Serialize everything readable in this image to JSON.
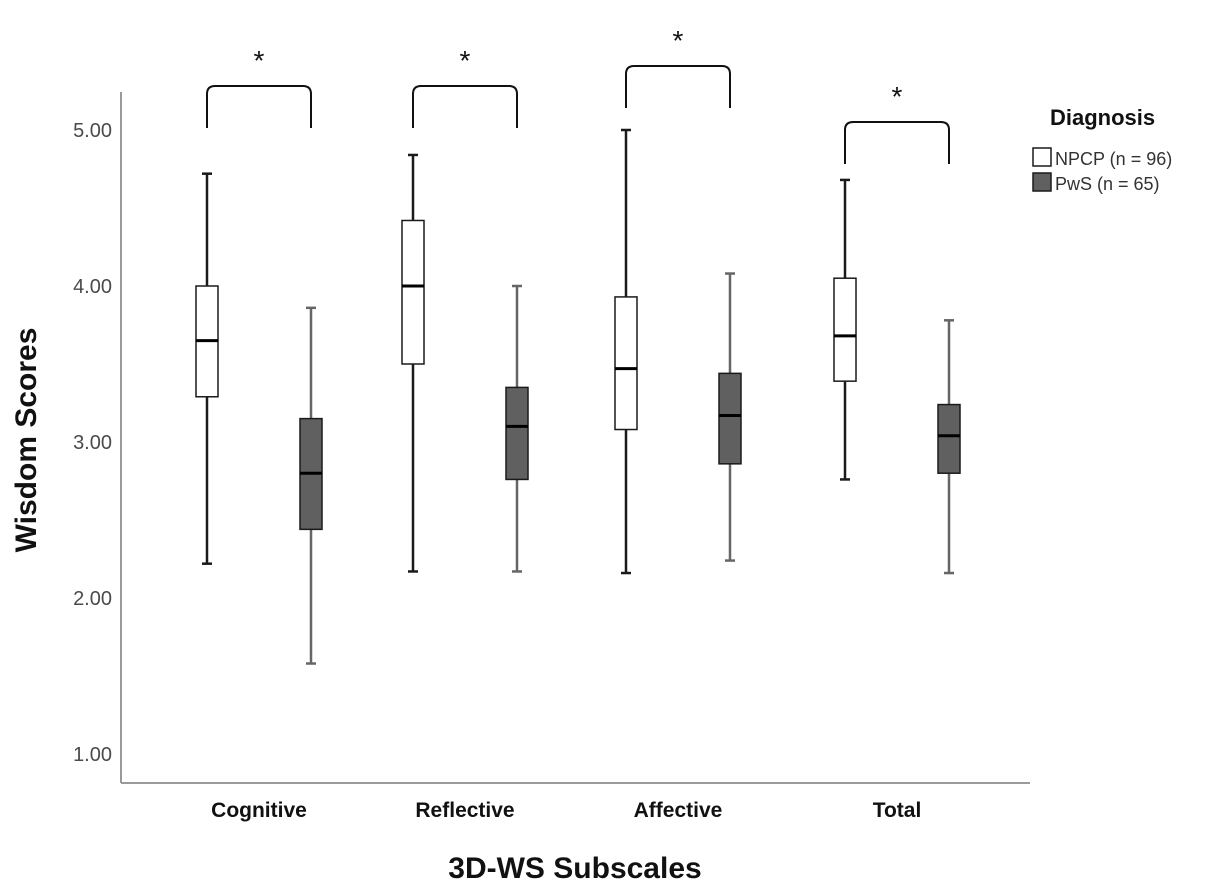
{
  "chart_data": {
    "type": "boxplot",
    "xlabel": "3D-WS Subscales",
    "ylabel": "Wisdom Scores",
    "ylim": [
      0.77,
      5.2
    ],
    "yticks": [
      "1.00",
      "2.00",
      "3.00",
      "4.00",
      "5.00"
    ],
    "categories": [
      "Cognitive",
      "Reflective",
      "Affective",
      "Total"
    ],
    "legend": {
      "title": "Diagnosis",
      "placement": "top-right"
    },
    "series": [
      {
        "name": "NPCP (n = 96)",
        "fill": "#ffffff",
        "stroke": "#1a1a1a",
        "boxes": [
          {
            "min": 2.22,
            "q1": 3.29,
            "median": 3.65,
            "q3": 4.0,
            "max": 4.72
          },
          {
            "min": 2.17,
            "q1": 3.5,
            "median": 4.0,
            "q3": 4.42,
            "max": 4.84
          },
          {
            "min": 2.16,
            "q1": 3.08,
            "median": 3.47,
            "q3": 3.93,
            "max": 5.0
          },
          {
            "min": 2.76,
            "q1": 3.39,
            "median": 3.68,
            "q3": 4.05,
            "max": 4.68
          }
        ]
      },
      {
        "name": "PwS (n = 65)",
        "fill": "#606060",
        "stroke": "#1a1a1a",
        "boxes": [
          {
            "min": 1.58,
            "q1": 2.44,
            "median": 2.8,
            "q3": 3.15,
            "max": 3.86
          },
          {
            "min": 2.17,
            "q1": 2.76,
            "median": 3.1,
            "q3": 3.35,
            "max": 4.0
          },
          {
            "min": 2.24,
            "q1": 2.86,
            "median": 3.17,
            "q3": 3.44,
            "max": 4.08
          },
          {
            "min": 2.16,
            "q1": 2.8,
            "median": 3.04,
            "q3": 3.24,
            "max": 3.78
          }
        ]
      }
    ],
    "significance": [
      {
        "category": "Cognitive",
        "label": "*"
      },
      {
        "category": "Reflective",
        "label": "*"
      },
      {
        "category": "Affective",
        "label": "*"
      },
      {
        "category": "Total",
        "label": "*"
      }
    ],
    "grid": false
  }
}
